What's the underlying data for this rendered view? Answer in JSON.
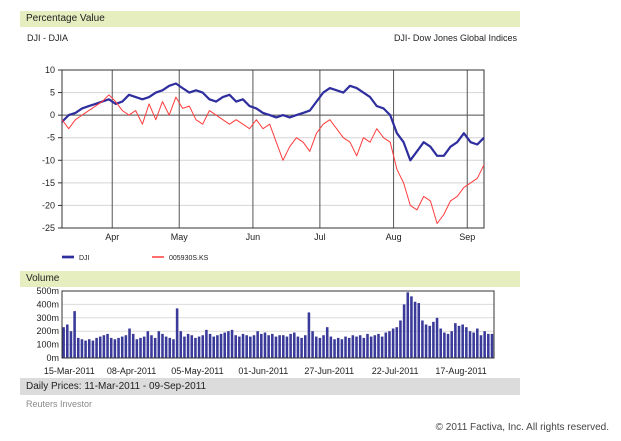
{
  "header": {
    "percent_title": "Percentage Value",
    "left_label": "DJI - DJIA",
    "right_label": "DJI- Dow Jones Global Indices",
    "volume_title": "Volume",
    "daily_prices": "Daily Prices: 11-Mar-2011 - 09-Sep-2011",
    "source": "Reuters Investor",
    "copyright": "© 2011 Factiva, Inc. All rights reserved."
  },
  "colors": {
    "dji": "#2e2e9e",
    "ks": "#ff3c3c",
    "volume": "#3a3a9a",
    "band": "#e6edbf"
  },
  "chart_data": [
    {
      "type": "line",
      "x_unit": "trading day index (11-Mar-2011 to 09-Sep-2011)",
      "ylim": [
        -25,
        10
      ],
      "yticks": [
        10,
        5,
        0,
        -5,
        -10,
        -15,
        -20,
        -25
      ],
      "xticks": [
        {
          "label": "Apr",
          "x": 15
        },
        {
          "label": "May",
          "x": 35
        },
        {
          "label": "Jun",
          "x": 57
        },
        {
          "label": "Jul",
          "x": 77
        },
        {
          "label": "Aug",
          "x": 99
        },
        {
          "label": "Sep",
          "x": 121
        }
      ],
      "series": [
        {
          "name": "DJI",
          "points": [
            [
              0,
              -1.5
            ],
            [
              2,
              0
            ],
            [
              4,
              0.5
            ],
            [
              6,
              1.5
            ],
            [
              8,
              2
            ],
            [
              10,
              2.5
            ],
            [
              12,
              3
            ],
            [
              14,
              3.5
            ],
            [
              16,
              2.5
            ],
            [
              18,
              3
            ],
            [
              20,
              4.5
            ],
            [
              22,
              4
            ],
            [
              24,
              3.5
            ],
            [
              26,
              4
            ],
            [
              28,
              5
            ],
            [
              30,
              5.5
            ],
            [
              32,
              6.5
            ],
            [
              34,
              7
            ],
            [
              36,
              6
            ],
            [
              38,
              5
            ],
            [
              40,
              5.5
            ],
            [
              42,
              5
            ],
            [
              44,
              3.5
            ],
            [
              46,
              3
            ],
            [
              48,
              4
            ],
            [
              50,
              4.5
            ],
            [
              52,
              3
            ],
            [
              54,
              3.5
            ],
            [
              56,
              2
            ],
            [
              58,
              1.5
            ],
            [
              60,
              0.5
            ],
            [
              62,
              0
            ],
            [
              64,
              -0.5
            ],
            [
              66,
              0
            ],
            [
              68,
              -0.5
            ],
            [
              70,
              0
            ],
            [
              72,
              0.5
            ],
            [
              74,
              1
            ],
            [
              76,
              3
            ],
            [
              78,
              5
            ],
            [
              80,
              6
            ],
            [
              82,
              5.5
            ],
            [
              84,
              5
            ],
            [
              86,
              6.5
            ],
            [
              88,
              6
            ],
            [
              90,
              5
            ],
            [
              92,
              4
            ],
            [
              94,
              2
            ],
            [
              96,
              1.5
            ],
            [
              98,
              0
            ],
            [
              100,
              -4
            ],
            [
              102,
              -6
            ],
            [
              104,
              -10
            ],
            [
              106,
              -8
            ],
            [
              108,
              -6
            ],
            [
              110,
              -7
            ],
            [
              112,
              -9
            ],
            [
              114,
              -9
            ],
            [
              116,
              -7
            ],
            [
              118,
              -6
            ],
            [
              120,
              -4
            ],
            [
              122,
              -6
            ],
            [
              124,
              -6.5
            ],
            [
              126,
              -5
            ]
          ]
        },
        {
          "name": "005930S.KS",
          "points": [
            [
              0,
              -1
            ],
            [
              2,
              -3
            ],
            [
              4,
              -1
            ],
            [
              6,
              0
            ],
            [
              8,
              1
            ],
            [
              10,
              2
            ],
            [
              12,
              3
            ],
            [
              14,
              4.5
            ],
            [
              16,
              3
            ],
            [
              18,
              1
            ],
            [
              20,
              0
            ],
            [
              22,
              1
            ],
            [
              24,
              -2
            ],
            [
              26,
              2.5
            ],
            [
              28,
              -1
            ],
            [
              30,
              3
            ],
            [
              32,
              0
            ],
            [
              34,
              4
            ],
            [
              36,
              1.5
            ],
            [
              38,
              2
            ],
            [
              40,
              -1
            ],
            [
              42,
              -2
            ],
            [
              44,
              1
            ],
            [
              46,
              0
            ],
            [
              48,
              -1
            ],
            [
              50,
              -2
            ],
            [
              52,
              -1
            ],
            [
              54,
              -2
            ],
            [
              56,
              -3
            ],
            [
              58,
              -1
            ],
            [
              60,
              -3
            ],
            [
              62,
              -2
            ],
            [
              64,
              -6
            ],
            [
              66,
              -10
            ],
            [
              68,
              -7
            ],
            [
              70,
              -5
            ],
            [
              72,
              -6
            ],
            [
              74,
              -8
            ],
            [
              76,
              -4
            ],
            [
              78,
              -2
            ],
            [
              80,
              -1
            ],
            [
              82,
              -3
            ],
            [
              84,
              -5
            ],
            [
              86,
              -6
            ],
            [
              88,
              -9
            ],
            [
              90,
              -5
            ],
            [
              92,
              -6
            ],
            [
              94,
              -3
            ],
            [
              96,
              -5
            ],
            [
              98,
              -6
            ],
            [
              100,
              -12
            ],
            [
              102,
              -15
            ],
            [
              104,
              -20
            ],
            [
              106,
              -21
            ],
            [
              108,
              -18
            ],
            [
              110,
              -19
            ],
            [
              112,
              -24
            ],
            [
              114,
              -22
            ],
            [
              116,
              -19
            ],
            [
              118,
              -18
            ],
            [
              120,
              -16
            ],
            [
              122,
              -15
            ],
            [
              124,
              -14
            ],
            [
              126,
              -11
            ]
          ]
        }
      ]
    },
    {
      "type": "bar",
      "title": "Volume",
      "ylim": [
        0,
        500
      ],
      "yticks": [
        {
          "v": 0,
          "label": "0m"
        },
        {
          "v": 100,
          "label": "100m"
        },
        {
          "v": 200,
          "label": "200m"
        },
        {
          "v": 300,
          "label": "300m"
        },
        {
          "v": 400,
          "label": "400m"
        },
        {
          "v": 500,
          "label": "500m"
        }
      ],
      "xticks": [
        {
          "label": "15-Mar-2011",
          "x": 2
        },
        {
          "label": "08-Apr-2011",
          "x": 19
        },
        {
          "label": "05-May-2011",
          "x": 37
        },
        {
          "label": "01-Jun-2011",
          "x": 55
        },
        {
          "label": "27-Jun-2011",
          "x": 73
        },
        {
          "label": "22-Jul-2011",
          "x": 91
        },
        {
          "label": "17-Aug-2011",
          "x": 109
        }
      ],
      "values": [
        230,
        250,
        200,
        350,
        150,
        140,
        130,
        140,
        130,
        150,
        160,
        170,
        180,
        150,
        140,
        150,
        160,
        170,
        220,
        180,
        140,
        150,
        160,
        200,
        170,
        150,
        200,
        180,
        160,
        150,
        140,
        370,
        200,
        160,
        180,
        170,
        150,
        160,
        170,
        210,
        180,
        160,
        170,
        180,
        190,
        200,
        210,
        170,
        160,
        180,
        170,
        160,
        170,
        200,
        180,
        190,
        170,
        180,
        160,
        170,
        170,
        160,
        180,
        190,
        160,
        150,
        170,
        340,
        200,
        160,
        150,
        170,
        230,
        160,
        140,
        150,
        140,
        160,
        150,
        170,
        160,
        170,
        150,
        180,
        160,
        170,
        180,
        160,
        190,
        200,
        220,
        230,
        280,
        400,
        490,
        460,
        420,
        410,
        280,
        250,
        240,
        270,
        300,
        220,
        190,
        180,
        200,
        260,
        240,
        250,
        230,
        200,
        190,
        220,
        170,
        200,
        180,
        180
      ]
    }
  ]
}
